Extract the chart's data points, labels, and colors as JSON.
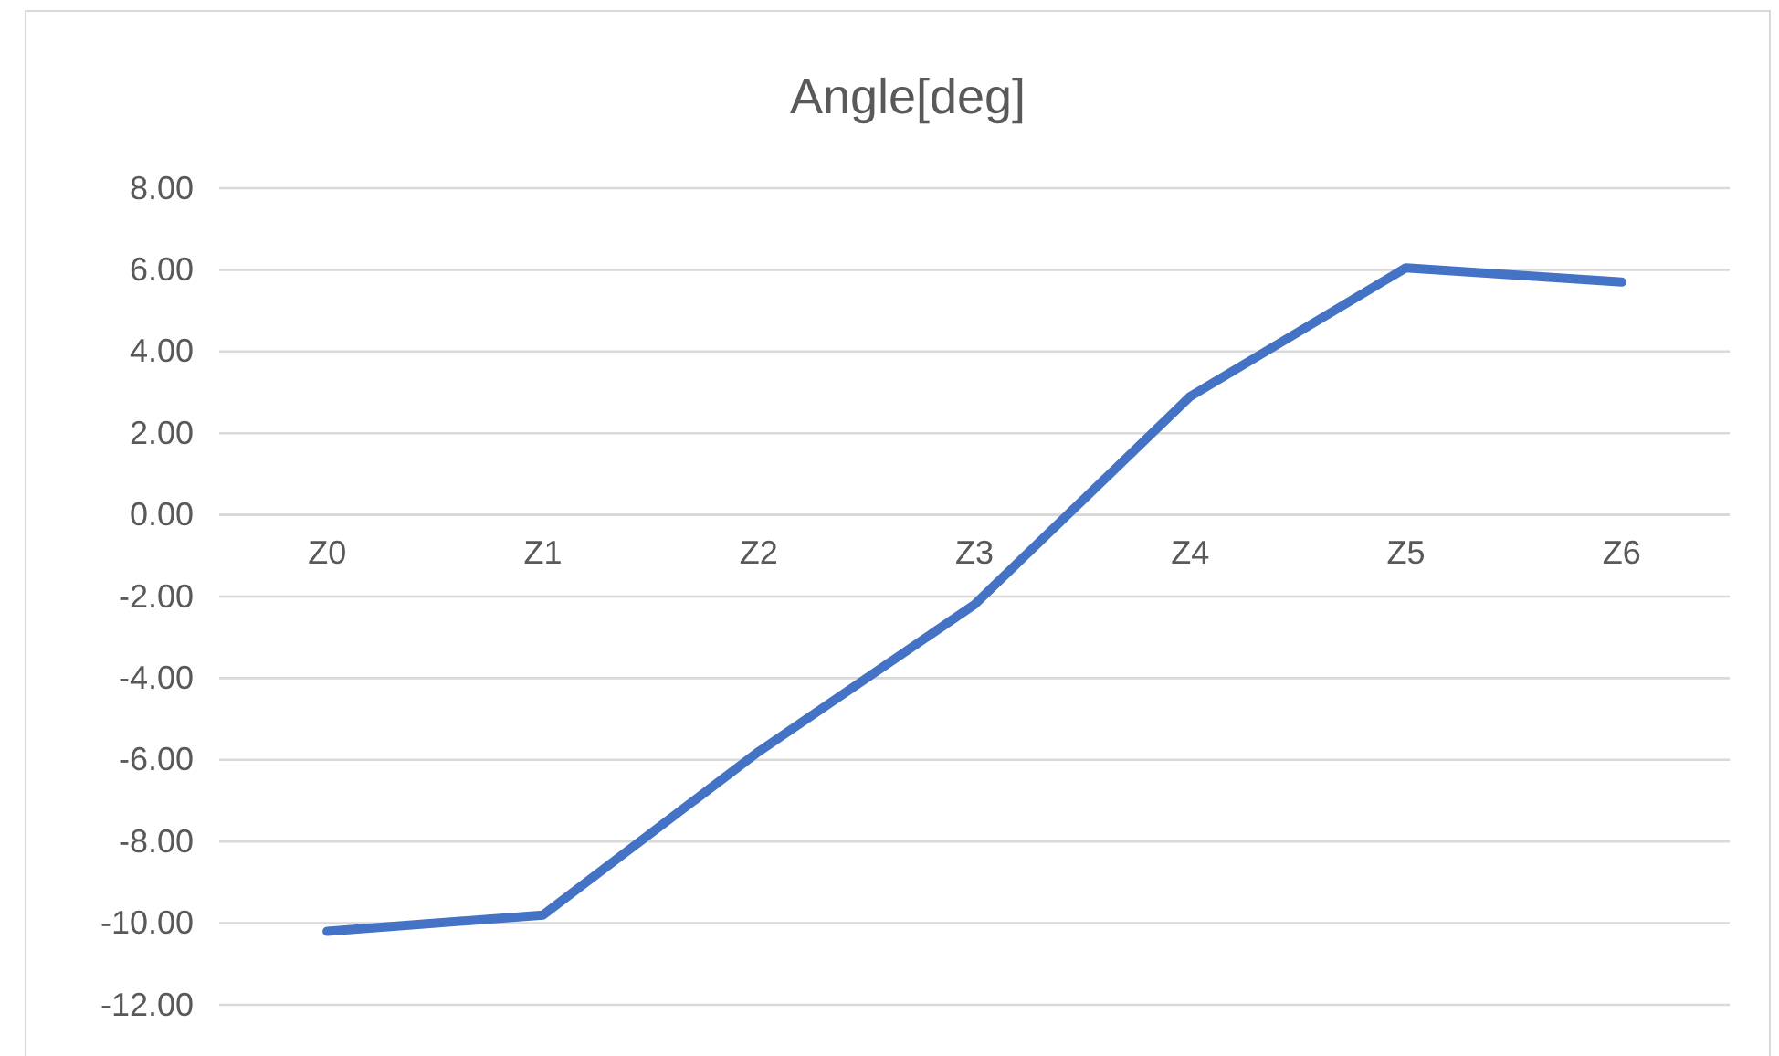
{
  "chart_data": {
    "type": "line",
    "title": "Angle[deg]",
    "categories": [
      "Z0",
      "Z1",
      "Z2",
      "Z3",
      "Z4",
      "Z5",
      "Z6"
    ],
    "series": [
      {
        "color": "#4472c4",
        "values": [
          -10.2,
          -9.8,
          -5.8,
          -2.2,
          2.9,
          6.05,
          5.7
        ]
      }
    ],
    "ylim": [
      -12,
      8
    ],
    "yticks": [
      {
        "value": 8,
        "label": "8.00"
      },
      {
        "value": 6,
        "label": "6.00"
      },
      {
        "value": 4,
        "label": "4.00"
      },
      {
        "value": 2,
        "label": "2.00"
      },
      {
        "value": 0,
        "label": "0.00"
      },
      {
        "value": -2,
        "label": "-2.00"
      },
      {
        "value": -4,
        "label": "-4.00"
      },
      {
        "value": -6,
        "label": "-6.00"
      },
      {
        "value": -8,
        "label": "-8.00"
      },
      {
        "value": -10,
        "label": "-10.00"
      },
      {
        "value": -12,
        "label": "-12.00"
      }
    ],
    "grid": "y",
    "marker": "none",
    "line_style": "solid"
  }
}
